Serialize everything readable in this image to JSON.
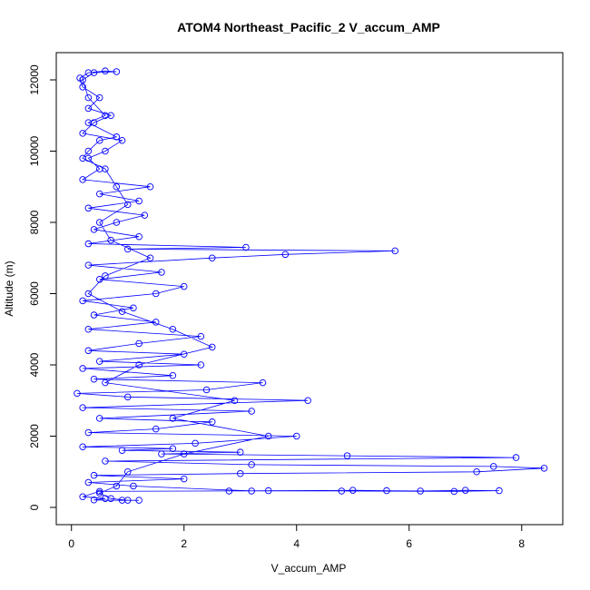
{
  "chart_data": {
    "type": "line",
    "marker": "circle",
    "title": "ATOM4 Northeast_Pacific_2 V_accum_AMP",
    "xlabel": "V_accum_AMP",
    "ylabel": "Altitude (m)",
    "color": "#0000ff",
    "xlim": [
      -0.27,
      8.73
    ],
    "ylim": [
      -484,
      12764
    ],
    "xticks": [
      0,
      2,
      4,
      6,
      8
    ],
    "yticks": [
      0,
      2000,
      4000,
      6000,
      8000,
      10000,
      12000
    ],
    "x": [
      1.2,
      0.9,
      0.4,
      0.6,
      0.2,
      0.5,
      2.8,
      3.5,
      5.0,
      5.6,
      6.2,
      7.0,
      7.6,
      6.8,
      4.8,
      3.2,
      1.1,
      0.3,
      2.0,
      0.4,
      3.0,
      7.2,
      8.4,
      7.5,
      3.2,
      0.6,
      7.9,
      4.9,
      1.6,
      3.0,
      0.9,
      1.8,
      0.2,
      2.2,
      4.0,
      0.3,
      1.5,
      2.5,
      0.5,
      3.2,
      0.2,
      4.2,
      1.0,
      0.1,
      2.4,
      3.4,
      0.4,
      1.8,
      0.2,
      2.3,
      0.5,
      2.0,
      0.3,
      1.2,
      2.3,
      0.3,
      1.5,
      0.4,
      1.1,
      0.2,
      1.5,
      2.0,
      0.5,
      1.6,
      0.3,
      2.5,
      3.8,
      5.75,
      1.0,
      3.1,
      0.3,
      1.2,
      0.4,
      0.8,
      1.3,
      0.3,
      1.2,
      0.5,
      1.4,
      0.2,
      0.5,
      0.3,
      0.6,
      0.9,
      0.2,
      0.4,
      0.7,
      0.3,
      0.5,
      0.2,
      0.15,
      0.3,
      0.6,
      0.8,
      0.4,
      0.2,
      0.3,
      0.6,
      0.3,
      0.8,
      0.5,
      0.3,
      0.2,
      0.6,
      0.8,
      1.0,
      0.5,
      0.7,
      1.4,
      0.6,
      0.3,
      0.9,
      1.8,
      2.5,
      1.2,
      0.6,
      2.9,
      1.8,
      3.5,
      2.0,
      1.0,
      0.8,
      0.5,
      0.7,
      1.0
    ],
    "y": [
      200,
      200,
      210,
      250,
      300,
      450,
      460,
      470,
      480,
      470,
      460,
      480,
      470,
      450,
      460,
      460,
      600,
      700,
      800,
      900,
      950,
      1000,
      1100,
      1150,
      1200,
      1300,
      1400,
      1450,
      1500,
      1550,
      1600,
      1650,
      1700,
      1800,
      2000,
      2100,
      2200,
      2400,
      2500,
      2700,
      2800,
      3000,
      3100,
      3200,
      3300,
      3500,
      3600,
      3700,
      3900,
      4000,
      4100,
      4300,
      4400,
      4600,
      4800,
      5000,
      5200,
      5400,
      5600,
      5800,
      6000,
      6200,
      6400,
      6600,
      6800,
      7000,
      7100,
      7200,
      7250,
      7300,
      7400,
      7600,
      7800,
      8000,
      8200,
      8400,
      8600,
      8800,
      9000,
      9200,
      9500,
      9800,
      10000,
      10300,
      10500,
      10800,
      11000,
      11200,
      11500,
      11800,
      12050,
      12200,
      12250,
      12230,
      12200,
      12000,
      11500,
      11000,
      10800,
      10400,
      10300,
      10000,
      9800,
      9500,
      9000,
      8500,
      8000,
      7500,
      7000,
      6500,
      6000,
      5500,
      5000,
      4500,
      4000,
      3500,
      3000,
      2500,
      2000,
      1500,
      1000,
      600,
      400,
      250,
      200
    ]
  }
}
